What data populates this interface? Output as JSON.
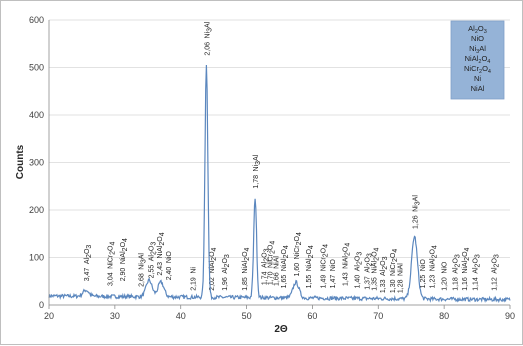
{
  "chart_data": {
    "type": "line",
    "xlabel": "2Θ",
    "ylabel": "Counts",
    "xlim": [
      20,
      90
    ],
    "ylim": [
      0,
      600
    ],
    "xticks": [
      20,
      30,
      40,
      50,
      60,
      70,
      80,
      90
    ],
    "yticks": [
      0,
      100,
      200,
      300,
      400,
      500,
      600
    ],
    "grid": true,
    "legend_position": "top-right",
    "line_color": "#5b87be",
    "legend": [
      "Al2O3",
      "NiO",
      "Ni3Al",
      "NiAl2O4",
      "NiCr2O4",
      "Ni",
      "NiAl"
    ],
    "peaks": [
      {
        "x": 25.6,
        "y": 30
      },
      {
        "x": 35.2,
        "y": 52
      },
      {
        "x": 37.0,
        "y": 48
      },
      {
        "x": 43.9,
        "y": 505
      },
      {
        "x": 51.3,
        "y": 228
      },
      {
        "x": 57.5,
        "y": 50
      },
      {
        "x": 75.5,
        "y": 148
      }
    ],
    "annotations": [
      {
        "d": "3,47",
        "phase": [
          "Al",
          "2",
          "O",
          "3"
        ],
        "x": 25.6,
        "y_top": 50
      },
      {
        "d": "3,04",
        "phase": [
          "NiCr",
          "2",
          "O",
          "4"
        ],
        "x": 29.2,
        "y_top": 40
      },
      {
        "d": "2,90",
        "phase": [
          "NiAl",
          "2",
          "O",
          "4"
        ],
        "x": 31.1,
        "y_top": 50
      },
      {
        "d": "2,68",
        "phase": [
          "Ni",
          "3",
          "Al"
        ],
        "x": 33.9,
        "y_top": 38
      },
      {
        "d": "2,55",
        "phase": [
          "Al",
          "2",
          "O",
          "3"
        ],
        "x": 35.4,
        "y_top": 56
      },
      {
        "d": "2,43",
        "phase": [
          "NiAl",
          "2",
          "O",
          "4"
        ],
        "x": 36.7,
        "y_top": 62
      },
      {
        "d": "2,40",
        "phase": [
          "NiO"
        ],
        "x": 38.1,
        "y_top": 52
      },
      {
        "d": "2,19",
        "phase": [
          "Ni"
        ],
        "x": 41.8,
        "y_top": 30
      },
      {
        "d": "2,06",
        "phase": [
          "Ni",
          "3",
          "Al"
        ],
        "x": 43.9,
        "y_top": 525
      },
      {
        "d": "2,02",
        "phase": [
          "NiAl",
          "2",
          "O",
          "4"
        ],
        "x": 44.6,
        "y_top": 30
      },
      {
        "d": "1,96",
        "phase": [
          "Al",
          "2",
          "O",
          "3"
        ],
        "x": 46.6,
        "y_top": 30
      },
      {
        "d": "1,85",
        "phase": [
          "NiAl",
          "2",
          "O",
          "4"
        ],
        "x": 49.6,
        "y_top": 30
      },
      {
        "d": "1,78",
        "phase": [
          "Ni",
          "3",
          "Al"
        ],
        "x": 51.3,
        "y_top": 245
      },
      {
        "d": "1,74",
        "phase": [
          "Al",
          "2",
          "O",
          "3"
        ],
        "x": 52.6,
        "y_top": 42
      },
      {
        "d": "1,70",
        "phase": [
          "NiCr",
          "2",
          "O",
          "4"
        ],
        "x": 53.5,
        "y_top": 42
      },
      {
        "d": "1,66",
        "phase": [
          "NiAl"
        ],
        "x": 54.4,
        "y_top": 40
      },
      {
        "d": "1,65",
        "phase": [
          "NiAl",
          "2",
          "O",
          "4"
        ],
        "x": 55.5,
        "y_top": 35
      },
      {
        "d": "1,60",
        "phase": [
          "NiCr",
          "2",
          "O",
          "4"
        ],
        "x": 57.5,
        "y_top": 60
      },
      {
        "d": "1,55",
        "phase": [
          "NiAl",
          "2",
          "O",
          "4"
        ],
        "x": 59.3,
        "y_top": 35
      },
      {
        "d": "1,49",
        "phase": [
          "NiCr",
          "2",
          "O",
          "4"
        ],
        "x": 61.5,
        "y_top": 35
      },
      {
        "d": "1,47",
        "phase": [
          "NiO"
        ],
        "x": 63.0,
        "y_top": 35
      },
      {
        "d": "1,43",
        "phase": [
          "NiAl",
          "2",
          "O",
          "4"
        ],
        "x": 64.9,
        "y_top": 40
      },
      {
        "d": "1,40",
        "phase": [
          "Al",
          "2",
          "O",
          "3"
        ],
        "x": 66.7,
        "y_top": 35
      },
      {
        "d": "1,37",
        "phase": [
          "Al",
          "2",
          "O",
          "3"
        ],
        "x": 68.2,
        "y_top": 32
      },
      {
        "d": "1,35",
        "phase": [
          "NiAl",
          "2",
          "O",
          "4"
        ],
        "x": 69.3,
        "y_top": 30
      },
      {
        "d": "1,33",
        "phase": [
          "Al",
          "2",
          "O",
          "3"
        ],
        "x": 70.6,
        "y_top": 25
      },
      {
        "d": "1,30",
        "phase": [
          "NiCr",
          "2",
          "O",
          "4"
        ],
        "x": 72.1,
        "y_top": 25
      },
      {
        "d": "1,28",
        "phase": [
          "NiAl"
        ],
        "x": 73.2,
        "y_top": 25
      },
      {
        "d": "1,26",
        "phase": [
          "Ni",
          "3",
          "Al"
        ],
        "x": 75.5,
        "y_top": 160
      },
      {
        "d": "1,25",
        "phase": [
          "NiO"
        ],
        "x": 76.6,
        "y_top": 35
      },
      {
        "d": "1,23",
        "phase": [
          "NiAl",
          "2",
          "O",
          "4"
        ],
        "x": 78.1,
        "y_top": 35
      },
      {
        "d": "1,20",
        "phase": [
          "NiO"
        ],
        "x": 79.9,
        "y_top": 30
      },
      {
        "d": "1,18",
        "phase": [
          "Al",
          "2",
          "O",
          "3"
        ],
        "x": 81.6,
        "y_top": 30
      },
      {
        "d": "1,16",
        "phase": [
          "NiAl",
          "2",
          "O",
          "4"
        ],
        "x": 83.0,
        "y_top": 30
      },
      {
        "d": "1,14",
        "phase": [
          "Al",
          "2",
          "O",
          "3"
        ],
        "x": 84.6,
        "y_top": 30
      },
      {
        "d": "1,12",
        "phase": [
          "Al",
          "2",
          "O",
          "3"
        ],
        "x": 87.5,
        "y_top": 30
      }
    ]
  }
}
